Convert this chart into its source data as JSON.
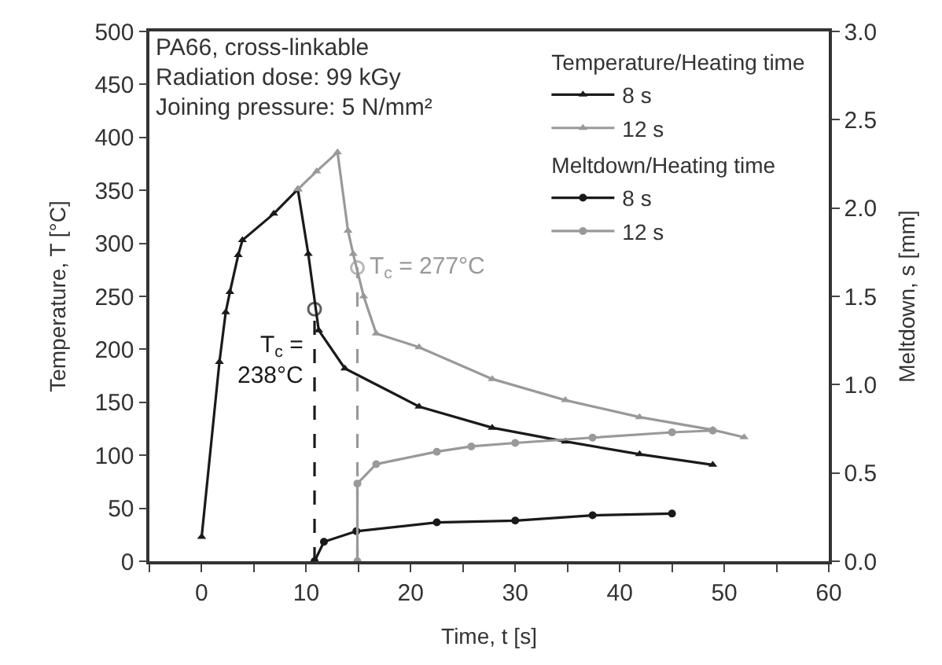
{
  "chart_data": {
    "type": "line",
    "xlabel": "Time, t [s]",
    "ylabel": "Temperature, T [°C]",
    "y2label": "Meltdown, s [mm]",
    "legend_title": [
      "Temperature/Heating time",
      "Meltdown/Heating time"
    ],
    "xlim": [
      -5,
      60
    ],
    "xticks": [
      {
        "value": -5,
        "label": null
      },
      0,
      {
        "value": 5,
        "label": null
      },
      10,
      {
        "value": 15,
        "label": null
      },
      20,
      {
        "value": 25,
        "label": null
      },
      30,
      {
        "value": 35,
        "label": null
      },
      40,
      {
        "value": 45,
        "label": null
      },
      50,
      {
        "value": 55,
        "label": null
      },
      60
    ],
    "ylim": [
      0,
      500
    ],
    "yticks": [
      0,
      50,
      100,
      150,
      200,
      250,
      300,
      350,
      400,
      450,
      500
    ],
    "y2lim": [
      0,
      3
    ],
    "y2ticks": [
      {
        "value": 0,
        "label": "0.0"
      },
      0.5,
      {
        "value": 1,
        "label": "1.0"
      },
      1.5,
      {
        "value": 2,
        "label": "2.0"
      },
      2.5,
      {
        "value": 3,
        "label": "3.0"
      }
    ],
    "legend": "top right",
    "series": [
      {
        "name": "8 s",
        "color": "#1a1a1a",
        "marker": "triangle",
        "x": [
          0,
          1.7,
          2.3,
          2.7,
          3.5,
          3.9,
          6.9,
          9.2,
          10.2,
          11.2,
          13.7,
          20.8,
          27.8,
          34.8,
          41.9,
          48.9
        ],
        "values": [
          23,
          188,
          235,
          254,
          289,
          303,
          328,
          351,
          290,
          218,
          182,
          146,
          126,
          113,
          101,
          91
        ]
      },
      {
        "name": "12 s",
        "color": "#999999",
        "marker": "triangle",
        "x": [
          9.2,
          11,
          13,
          14,
          14.5,
          15.5,
          16.7,
          20.8,
          27.8,
          34.8,
          41.9,
          48.9,
          51.9
        ],
        "values": [
          351,
          368,
          386,
          312,
          290,
          250,
          215,
          202,
          172,
          152,
          136,
          124,
          117
        ]
      },
      {
        "name": "8 s",
        "color": "#1a1a1a",
        "marker": "circle",
        "axis": "y2",
        "x": [
          10.8,
          11.7,
          14.8,
          22.5,
          30,
          37.4,
          45
        ],
        "values": [
          0,
          0.11,
          0.17,
          0.22,
          0.23,
          0.26,
          0.27
        ]
      },
      {
        "name": "12 s",
        "color": "#999999",
        "marker": "circle",
        "axis": "y2",
        "x": [
          14.9,
          14.9,
          16.7,
          22.5,
          25.8,
          30,
          37.4,
          45,
          48.9
        ],
        "values": [
          0,
          0.44,
          0.55,
          0.62,
          0.65,
          0.67,
          0.7,
          0.73,
          0.74
        ]
      },
      {
        "color": "#1a1a1a",
        "marker": "circle",
        "line_style": "dashed",
        "x": [
          10.8,
          10.8
        ],
        "values": [
          0,
          238
        ]
      },
      {
        "color": "#999999",
        "marker": "circle",
        "line_style": "dashed",
        "x": [
          14.9,
          14.9
        ],
        "values": [
          0,
          277
        ]
      }
    ],
    "annotations": [
      "PA66, cross-linkable",
      "Radiation dose: 99 kGy",
      "Joining pressure: 5 N/mm²",
      {
        "text": "T$_{c}$ =\n238°C",
        "x": 10.8,
        "y": 238
      },
      {
        "text": "T$_{c}$ = 277°C",
        "x": 14.9,
        "y": 277
      }
    ]
  }
}
